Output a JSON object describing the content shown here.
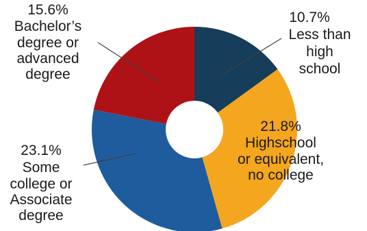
{
  "chart_data": {
    "type": "pie",
    "style": "donut",
    "title": "",
    "start": "12 o'clock, clockwise",
    "slices": [
      {
        "name": "Less than high school",
        "value": 10.7,
        "value_label": "10.7%",
        "label_lines": [
          "Less than",
          "high",
          "school"
        ],
        "color": "#163d5a"
      },
      {
        "name": "Highschool or equivalent, no college",
        "value": 21.8,
        "value_label": "21.8%",
        "label_lines": [
          "Highschool",
          "or equivalent,",
          "no college"
        ],
        "color": "#f4a61f"
      },
      {
        "name": "Some college or Associate degree",
        "value": 23.1,
        "value_label": "23.1%",
        "label_lines": [
          "Some",
          "college or",
          "Associate",
          "degree"
        ],
        "color": "#1f5c9e"
      },
      {
        "name": "Bachelor's degree or advanced degree",
        "value": 15.6,
        "value_label": "15.6%",
        "label_lines": [
          "Bachelor’s",
          "degree or",
          "advanced",
          "degree"
        ],
        "color": "#ae1217"
      }
    ]
  }
}
